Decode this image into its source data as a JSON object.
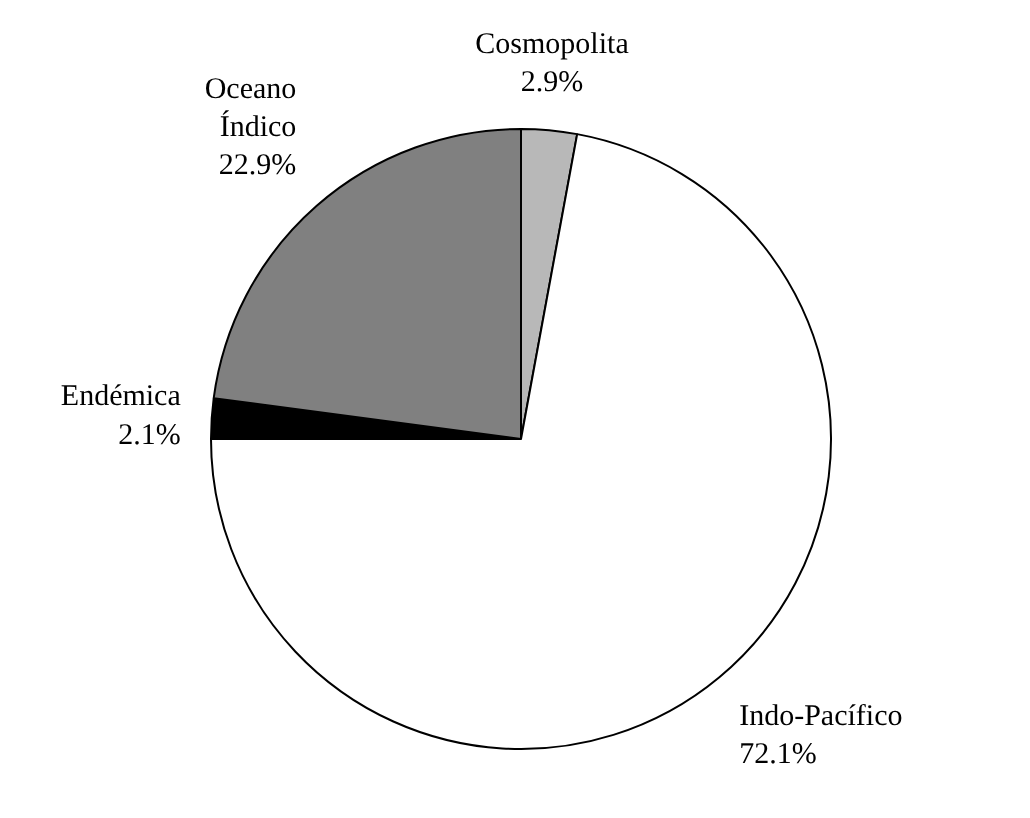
{
  "chart_data": {
    "type": "pie",
    "categories": [
      "Cosmopolita",
      "Indo-Pacífico",
      "Endémica",
      "Oceano Índico"
    ],
    "values": [
      2.9,
      72.1,
      2.1,
      22.9
    ],
    "value_labels": [
      "2.9%",
      "72.1%",
      "2.1%",
      "22.9%"
    ],
    "colors": [
      "#b8b8b8",
      "#ffffff",
      "#000000",
      "#808080"
    ]
  }
}
